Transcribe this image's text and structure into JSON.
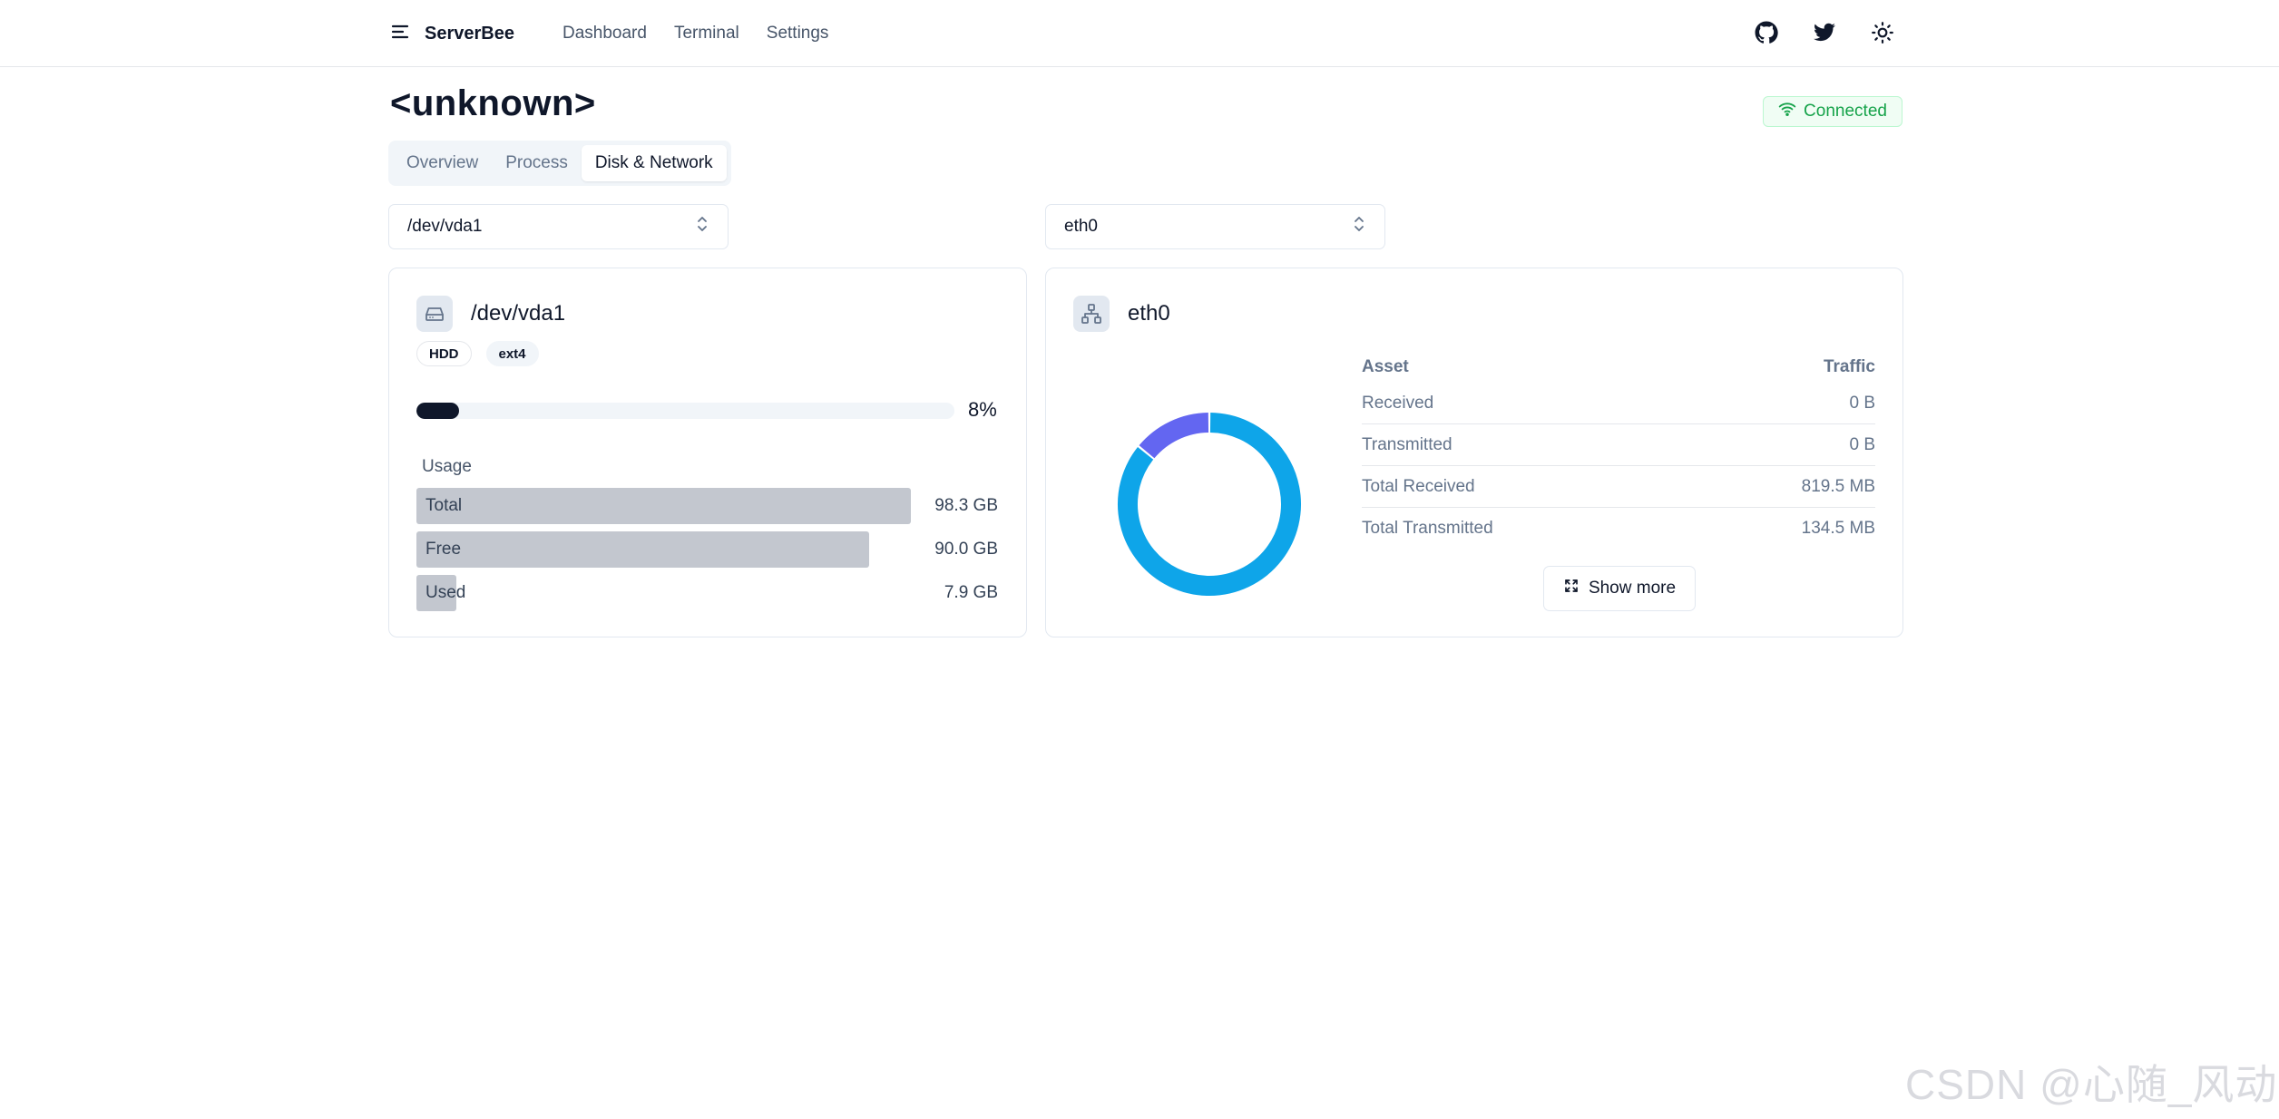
{
  "header": {
    "brand": "ServerBee",
    "nav": [
      "Dashboard",
      "Terminal",
      "Settings"
    ],
    "icons": [
      "github-icon",
      "twitter-icon",
      "sun-icon"
    ]
  },
  "page": {
    "title": "<unknown>",
    "status": "Connected",
    "status_color": "#16a34a"
  },
  "tabs": [
    {
      "label": "Overview",
      "active": false
    },
    {
      "label": "Process",
      "active": false
    },
    {
      "label": "Disk & Network",
      "active": true
    }
  ],
  "disk": {
    "select_value": "/dev/vda1",
    "title": "/dev/vda1",
    "badges": [
      "HDD",
      "ext4"
    ],
    "usage_percent": 8,
    "usage_percent_label": "8%",
    "usage_heading": "Usage",
    "rows": [
      {
        "name": "Total",
        "value": "98.3 GB",
        "fraction": 1.0
      },
      {
        "name": "Free",
        "value": "90.0 GB",
        "fraction": 0.916
      },
      {
        "name": "Used",
        "value": "7.9 GB",
        "fraction": 0.08
      }
    ]
  },
  "network": {
    "select_value": "eth0",
    "title": "eth0",
    "table_headers": {
      "asset": "Asset",
      "traffic": "Traffic"
    },
    "rows": [
      {
        "asset": "Received",
        "traffic": "0 B"
      },
      {
        "asset": "Transmitted",
        "traffic": "0 B"
      },
      {
        "asset": "Total Received",
        "traffic": "819.5 MB"
      },
      {
        "asset": "Total Transmitted",
        "traffic": "134.5 MB"
      }
    ],
    "donut": [
      {
        "value": 819.5,
        "color": "#0ea5e9"
      },
      {
        "value": 134.5,
        "color": "#6366f1"
      }
    ],
    "show_more": "Show more"
  },
  "watermark": "CSDN @心随_风动"
}
